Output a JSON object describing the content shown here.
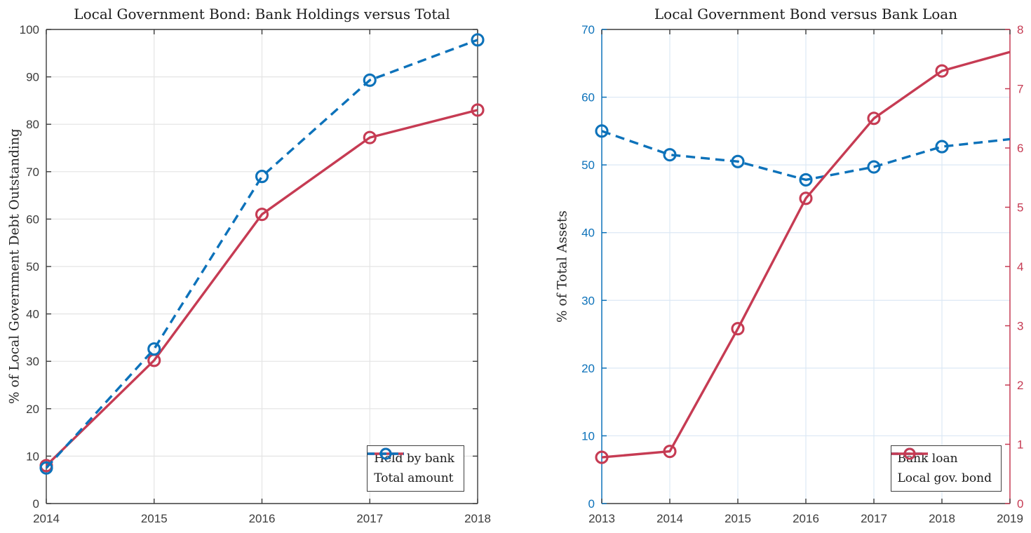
{
  "figure": {
    "background": "#ffffff",
    "colors": {
      "blue": "#0d72ba",
      "red": "#c63b53",
      "spine": "#3c3c3c",
      "tick_text": "#3c3c3c",
      "grid_left_chart": "#e4e4e4",
      "grid_right_chart": "#dbe8f5"
    }
  },
  "chart_data": [
    {
      "type": "line",
      "title": "Local Government Bond: Bank Holdings versus Total",
      "xlabel": "",
      "ylabel": "% of Local Government Debt Outstanding",
      "x": [
        2014,
        2015,
        2016,
        2017,
        2018
      ],
      "xticks": [
        2014,
        2015,
        2016,
        2017,
        2018
      ],
      "xlim": [
        2014,
        2018
      ],
      "ylim": [
        0,
        100
      ],
      "yticks": [
        0,
        10,
        20,
        30,
        40,
        50,
        60,
        70,
        80,
        90,
        100
      ],
      "grid": true,
      "legend_position": "bottom-right",
      "series": [
        {
          "name": "Held by bank",
          "color": "#c63b53",
          "line_style": "solid",
          "marker": "circle",
          "values": [
            8.0,
            30.2,
            61.0,
            77.2,
            83.0
          ]
        },
        {
          "name": "Total amount",
          "color": "#0d72ba",
          "line_style": "dashed",
          "marker": "circle",
          "values": [
            7.5,
            32.6,
            69.0,
            89.3,
            97.8
          ]
        }
      ]
    },
    {
      "type": "line",
      "title": "Local Government Bond versus Bank Loan",
      "xlabel": "",
      "ylabel_left": "% of Total Assets",
      "x": [
        2013,
        2014,
        2015,
        2016,
        2017,
        2018,
        2019
      ],
      "xticks": [
        2013,
        2014,
        2015,
        2016,
        2017,
        2018,
        2019
      ],
      "xlim": [
        2013,
        2019
      ],
      "left_axis": {
        "lim": [
          0,
          70
        ],
        "ticks": [
          0,
          10,
          20,
          30,
          40,
          50,
          60,
          70
        ],
        "color": "#0d72ba"
      },
      "right_axis": {
        "lim": [
          0,
          8
        ],
        "ticks": [
          0,
          1,
          2,
          3,
          4,
          5,
          6,
          7,
          8
        ],
        "color": "#c63b53"
      },
      "grid": true,
      "legend_position": "bottom-right",
      "series": [
        {
          "name": "Bank loan",
          "axis": "left",
          "color": "#0d72ba",
          "line_style": "dashed",
          "marker": "circle",
          "marker_on_last_point": false,
          "values": [
            55.0,
            51.5,
            50.5,
            47.8,
            49.7,
            52.7,
            53.8
          ]
        },
        {
          "name": "Local gov. bond",
          "axis": "right",
          "color": "#c63b53",
          "line_style": "solid",
          "marker": "circle",
          "marker_on_last_point": false,
          "values": [
            0.78,
            0.88,
            2.95,
            5.15,
            6.5,
            7.3,
            7.62
          ]
        }
      ]
    }
  ]
}
